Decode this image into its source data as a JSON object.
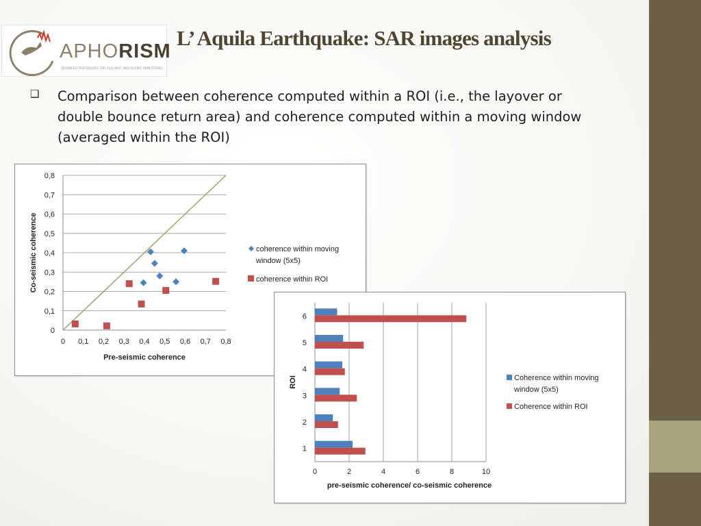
{
  "slide": {
    "title": "L’ Aquila Earthquake: SAR images analysis",
    "bullet_text": "Comparison between coherence computed within a ROI (i.e., the layover or double bounce return area) and coherence computed within a moving window (averaged within the ROI)",
    "bullet_icon": "hollow-square-bullet-icon"
  },
  "logo": {
    "text_light": "APHO",
    "text_strong": "RISM",
    "tagline": "ADVANCED PROCEDURES FOR VOLCANIC AND SEISMIC MONITORING"
  },
  "colors": {
    "sidebar": "#6b6046",
    "sidebar_accent": "#a8a37a",
    "title": "#50462f",
    "series_moving": "#4f81bd",
    "series_roi": "#c0504d",
    "diagonal": "#9e9a62"
  },
  "chart_data": [
    {
      "type": "scatter",
      "title": "",
      "xlabel": "Pre-seismic coherence",
      "ylabel": "Co-seismic coherence",
      "xlim": [
        0,
        0.8
      ],
      "ylim": [
        0,
        0.8
      ],
      "xticks": [
        "0",
        "0,1",
        "0,2",
        "0,3",
        "0,4",
        "0,5",
        "0,6",
        "0,7",
        "0,8"
      ],
      "yticks": [
        "0",
        "0,1",
        "0,2",
        "0,3",
        "0,4",
        "0,5",
        "0,6",
        "0,7",
        "0,8"
      ],
      "grid": "horizontal",
      "legend_position": "right",
      "reference_line": "y = x",
      "series": [
        {
          "name": "coherence within moving window (5x5)",
          "marker": "diamond",
          "points": [
            [
              0.395,
              0.245
            ],
            [
              0.43,
              0.405
            ],
            [
              0.45,
              0.345
            ],
            [
              0.475,
              0.28
            ],
            [
              0.555,
              0.25
            ],
            [
              0.595,
              0.41
            ]
          ]
        },
        {
          "name": "coherence within ROI",
          "marker": "square",
          "points": [
            [
              0.06,
              0.032
            ],
            [
              0.215,
              0.022
            ],
            [
              0.325,
              0.24
            ],
            [
              0.385,
              0.135
            ],
            [
              0.505,
              0.205
            ],
            [
              0.75,
              0.252
            ]
          ]
        }
      ]
    },
    {
      "type": "bar",
      "orientation": "horizontal",
      "title": "",
      "xlabel": "pre-seismic coherence/ co-seismic coherence",
      "ylabel": "ROI",
      "xlim": [
        0,
        10
      ],
      "xticks": [
        "0",
        "2",
        "4",
        "6",
        "8",
        "10"
      ],
      "categories": [
        "1",
        "2",
        "3",
        "4",
        "5",
        "6"
      ],
      "grid": "vertical",
      "legend_position": "right",
      "series": [
        {
          "name": "Coherence within moving window (5x5)",
          "values": [
            2.2,
            1.05,
            1.45,
            1.6,
            1.65,
            1.3
          ]
        },
        {
          "name": "Coherence within ROI",
          "values": [
            2.95,
            1.35,
            2.45,
            1.75,
            2.85,
            8.85
          ]
        }
      ]
    }
  ]
}
